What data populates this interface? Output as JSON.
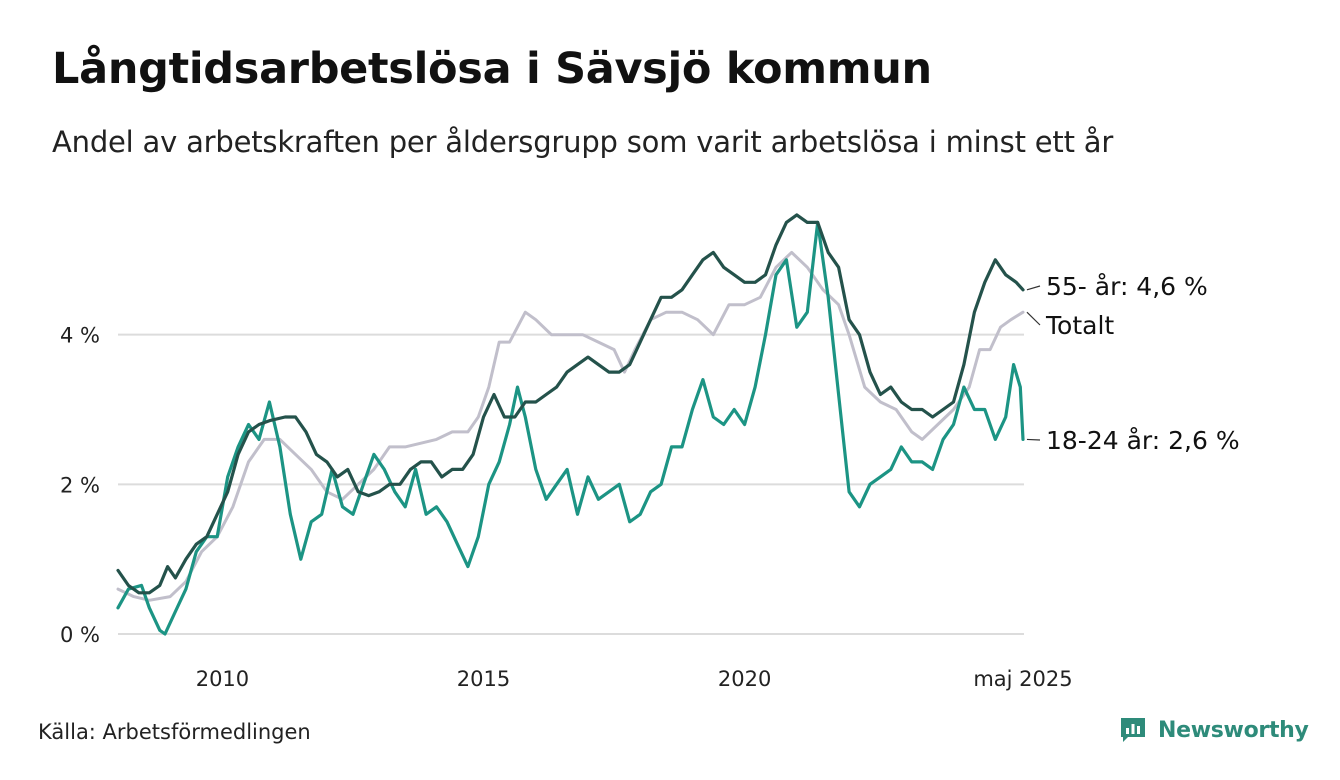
{
  "title": "Långtidsarbetslösa i Sävsjö kommun",
  "subtitle": "Andel av arbetskraften per åldersgrupp som varit arbetslösa i minst ett år",
  "source": "Källa: Arbetsförmedlingen",
  "brand": {
    "name": "Newsworthy",
    "icon": "bar-chart-icon"
  },
  "colors": {
    "age55": "#24524b",
    "total": "#c1bfcb",
    "age18_24": "#1c9484",
    "grid": "#dcdcdc",
    "brand": "#2e8b7a"
  },
  "chart_data": {
    "type": "line",
    "ylim": [
      0,
      6
    ],
    "xlim": [
      2008.0,
      2025.35
    ],
    "yticks": [
      {
        "value": 0,
        "label": "0 %"
      },
      {
        "value": 2,
        "label": "2 %"
      },
      {
        "value": 4,
        "label": "4 %"
      }
    ],
    "xticks": [
      {
        "value": 2010,
        "label": "2010"
      },
      {
        "value": 2015,
        "label": "2015"
      },
      {
        "value": 2020,
        "label": "2020"
      },
      {
        "value": 2025.33,
        "label": "maj 2025"
      }
    ],
    "grid": "horizontal",
    "series": [
      {
        "key": "total",
        "name": "Totalt",
        "label": "Totalt",
        "points": [
          [
            2008.0,
            0.6
          ],
          [
            2008.3,
            0.5
          ],
          [
            2008.6,
            0.45
          ],
          [
            2009.0,
            0.5
          ],
          [
            2009.3,
            0.7
          ],
          [
            2009.6,
            1.1
          ],
          [
            2009.9,
            1.3
          ],
          [
            2010.2,
            1.7
          ],
          [
            2010.5,
            2.3
          ],
          [
            2010.8,
            2.6
          ],
          [
            2011.1,
            2.6
          ],
          [
            2011.4,
            2.4
          ],
          [
            2011.7,
            2.2
          ],
          [
            2012.0,
            1.9
          ],
          [
            2012.3,
            1.8
          ],
          [
            2012.6,
            2.0
          ],
          [
            2012.9,
            2.2
          ],
          [
            2013.2,
            2.5
          ],
          [
            2013.5,
            2.5
          ],
          [
            2013.8,
            2.55
          ],
          [
            2014.1,
            2.6
          ],
          [
            2014.4,
            2.7
          ],
          [
            2014.7,
            2.7
          ],
          [
            2014.9,
            2.9
          ],
          [
            2015.1,
            3.3
          ],
          [
            2015.3,
            3.9
          ],
          [
            2015.5,
            3.9
          ],
          [
            2015.8,
            4.3
          ],
          [
            2016.0,
            4.2
          ],
          [
            2016.3,
            4.0
          ],
          [
            2016.6,
            4.0
          ],
          [
            2016.9,
            4.0
          ],
          [
            2017.2,
            3.9
          ],
          [
            2017.5,
            3.8
          ],
          [
            2017.7,
            3.5
          ],
          [
            2017.9,
            3.8
          ],
          [
            2018.2,
            4.2
          ],
          [
            2018.5,
            4.3
          ],
          [
            2018.8,
            4.3
          ],
          [
            2019.1,
            4.2
          ],
          [
            2019.4,
            4.0
          ],
          [
            2019.7,
            4.4
          ],
          [
            2020.0,
            4.4
          ],
          [
            2020.3,
            4.5
          ],
          [
            2020.6,
            4.9
          ],
          [
            2020.9,
            5.1
          ],
          [
            2021.2,
            4.9
          ],
          [
            2021.5,
            4.6
          ],
          [
            2021.8,
            4.4
          ],
          [
            2022.0,
            4.0
          ],
          [
            2022.3,
            3.3
          ],
          [
            2022.6,
            3.1
          ],
          [
            2022.9,
            3.0
          ],
          [
            2023.2,
            2.7
          ],
          [
            2023.4,
            2.6
          ],
          [
            2023.7,
            2.8
          ],
          [
            2024.0,
            3.0
          ],
          [
            2024.3,
            3.3
          ],
          [
            2024.5,
            3.8
          ],
          [
            2024.7,
            3.8
          ],
          [
            2024.9,
            4.1
          ],
          [
            2025.1,
            4.2
          ],
          [
            2025.33,
            4.3
          ]
        ]
      },
      {
        "key": "age18_24",
        "name": "18-24 år",
        "label": "18-24 år: 2,6 %",
        "points": [
          [
            2008.0,
            0.35
          ],
          [
            2008.2,
            0.6
          ],
          [
            2008.45,
            0.65
          ],
          [
            2008.6,
            0.35
          ],
          [
            2008.8,
            0.05
          ],
          [
            2008.9,
            0.0
          ],
          [
            2009.1,
            0.3
          ],
          [
            2009.3,
            0.6
          ],
          [
            2009.5,
            1.1
          ],
          [
            2009.7,
            1.3
          ],
          [
            2009.9,
            1.3
          ],
          [
            2010.1,
            2.1
          ],
          [
            2010.3,
            2.5
          ],
          [
            2010.5,
            2.8
          ],
          [
            2010.7,
            2.6
          ],
          [
            2010.9,
            3.1
          ],
          [
            2011.1,
            2.5
          ],
          [
            2011.3,
            1.6
          ],
          [
            2011.5,
            1.0
          ],
          [
            2011.7,
            1.5
          ],
          [
            2011.9,
            1.6
          ],
          [
            2012.1,
            2.2
          ],
          [
            2012.3,
            1.7
          ],
          [
            2012.5,
            1.6
          ],
          [
            2012.7,
            2.0
          ],
          [
            2012.9,
            2.4
          ],
          [
            2013.1,
            2.2
          ],
          [
            2013.3,
            1.9
          ],
          [
            2013.5,
            1.7
          ],
          [
            2013.7,
            2.2
          ],
          [
            2013.9,
            1.6
          ],
          [
            2014.1,
            1.7
          ],
          [
            2014.3,
            1.5
          ],
          [
            2014.5,
            1.2
          ],
          [
            2014.7,
            0.9
          ],
          [
            2014.9,
            1.3
          ],
          [
            2015.1,
            2.0
          ],
          [
            2015.3,
            2.3
          ],
          [
            2015.5,
            2.8
          ],
          [
            2015.65,
            3.3
          ],
          [
            2015.8,
            2.9
          ],
          [
            2016.0,
            2.2
          ],
          [
            2016.2,
            1.8
          ],
          [
            2016.4,
            2.0
          ],
          [
            2016.6,
            2.2
          ],
          [
            2016.8,
            1.6
          ],
          [
            2017.0,
            2.1
          ],
          [
            2017.2,
            1.8
          ],
          [
            2017.4,
            1.9
          ],
          [
            2017.6,
            2.0
          ],
          [
            2017.8,
            1.5
          ],
          [
            2018.0,
            1.6
          ],
          [
            2018.2,
            1.9
          ],
          [
            2018.4,
            2.0
          ],
          [
            2018.6,
            2.5
          ],
          [
            2018.8,
            2.5
          ],
          [
            2019.0,
            3.0
          ],
          [
            2019.2,
            3.4
          ],
          [
            2019.4,
            2.9
          ],
          [
            2019.6,
            2.8
          ],
          [
            2019.8,
            3.0
          ],
          [
            2020.0,
            2.8
          ],
          [
            2020.2,
            3.3
          ],
          [
            2020.4,
            4.0
          ],
          [
            2020.6,
            4.8
          ],
          [
            2020.8,
            5.0
          ],
          [
            2021.0,
            4.1
          ],
          [
            2021.2,
            4.3
          ],
          [
            2021.4,
            5.5
          ],
          [
            2021.6,
            4.5
          ],
          [
            2021.8,
            3.2
          ],
          [
            2022.0,
            1.9
          ],
          [
            2022.2,
            1.7
          ],
          [
            2022.4,
            2.0
          ],
          [
            2022.6,
            2.1
          ],
          [
            2022.8,
            2.2
          ],
          [
            2023.0,
            2.5
          ],
          [
            2023.2,
            2.3
          ],
          [
            2023.4,
            2.3
          ],
          [
            2023.6,
            2.2
          ],
          [
            2023.8,
            2.6
          ],
          [
            2024.0,
            2.8
          ],
          [
            2024.2,
            3.3
          ],
          [
            2024.4,
            3.0
          ],
          [
            2024.6,
            3.0
          ],
          [
            2024.8,
            2.6
          ],
          [
            2025.0,
            2.9
          ],
          [
            2025.15,
            3.6
          ],
          [
            2025.28,
            3.3
          ],
          [
            2025.33,
            2.6
          ]
        ]
      },
      {
        "key": "age55",
        "name": "55- år",
        "label": "55- år: 4,6 %",
        "points": [
          [
            2008.0,
            0.85
          ],
          [
            2008.2,
            0.65
          ],
          [
            2008.4,
            0.55
          ],
          [
            2008.6,
            0.55
          ],
          [
            2008.8,
            0.65
          ],
          [
            2008.95,
            0.9
          ],
          [
            2009.1,
            0.75
          ],
          [
            2009.3,
            1.0
          ],
          [
            2009.5,
            1.2
          ],
          [
            2009.7,
            1.3
          ],
          [
            2009.9,
            1.6
          ],
          [
            2010.1,
            1.9
          ],
          [
            2010.3,
            2.4
          ],
          [
            2010.5,
            2.7
          ],
          [
            2010.7,
            2.8
          ],
          [
            2010.9,
            2.85
          ],
          [
            2011.2,
            2.9
          ],
          [
            2011.4,
            2.9
          ],
          [
            2011.6,
            2.7
          ],
          [
            2011.8,
            2.4
          ],
          [
            2012.0,
            2.3
          ],
          [
            2012.2,
            2.1
          ],
          [
            2012.4,
            2.2
          ],
          [
            2012.6,
            1.9
          ],
          [
            2012.8,
            1.85
          ],
          [
            2013.0,
            1.9
          ],
          [
            2013.2,
            2.0
          ],
          [
            2013.4,
            2.0
          ],
          [
            2013.6,
            2.2
          ],
          [
            2013.8,
            2.3
          ],
          [
            2014.0,
            2.3
          ],
          [
            2014.2,
            2.1
          ],
          [
            2014.4,
            2.2
          ],
          [
            2014.6,
            2.2
          ],
          [
            2014.8,
            2.4
          ],
          [
            2015.0,
            2.9
          ],
          [
            2015.2,
            3.2
          ],
          [
            2015.4,
            2.9
          ],
          [
            2015.6,
            2.9
          ],
          [
            2015.8,
            3.1
          ],
          [
            2016.0,
            3.1
          ],
          [
            2016.2,
            3.2
          ],
          [
            2016.4,
            3.3
          ],
          [
            2016.6,
            3.5
          ],
          [
            2016.8,
            3.6
          ],
          [
            2017.0,
            3.7
          ],
          [
            2017.2,
            3.6
          ],
          [
            2017.4,
            3.5
          ],
          [
            2017.6,
            3.5
          ],
          [
            2017.8,
            3.6
          ],
          [
            2018.0,
            3.9
          ],
          [
            2018.2,
            4.2
          ],
          [
            2018.4,
            4.5
          ],
          [
            2018.6,
            4.5
          ],
          [
            2018.8,
            4.6
          ],
          [
            2019.0,
            4.8
          ],
          [
            2019.2,
            5.0
          ],
          [
            2019.4,
            5.1
          ],
          [
            2019.6,
            4.9
          ],
          [
            2019.8,
            4.8
          ],
          [
            2020.0,
            4.7
          ],
          [
            2020.2,
            4.7
          ],
          [
            2020.4,
            4.8
          ],
          [
            2020.6,
            5.2
          ],
          [
            2020.8,
            5.5
          ],
          [
            2021.0,
            5.6
          ],
          [
            2021.2,
            5.5
          ],
          [
            2021.4,
            5.5
          ],
          [
            2021.6,
            5.1
          ],
          [
            2021.8,
            4.9
          ],
          [
            2022.0,
            4.2
          ],
          [
            2022.2,
            4.0
          ],
          [
            2022.4,
            3.5
          ],
          [
            2022.6,
            3.2
          ],
          [
            2022.8,
            3.3
          ],
          [
            2023.0,
            3.1
          ],
          [
            2023.2,
            3.0
          ],
          [
            2023.4,
            3.0
          ],
          [
            2023.6,
            2.9
          ],
          [
            2023.8,
            3.0
          ],
          [
            2024.0,
            3.1
          ],
          [
            2024.2,
            3.6
          ],
          [
            2024.4,
            4.3
          ],
          [
            2024.6,
            4.7
          ],
          [
            2024.8,
            5.0
          ],
          [
            2025.0,
            4.8
          ],
          [
            2025.2,
            4.7
          ],
          [
            2025.33,
            4.6
          ]
        ]
      }
    ]
  }
}
